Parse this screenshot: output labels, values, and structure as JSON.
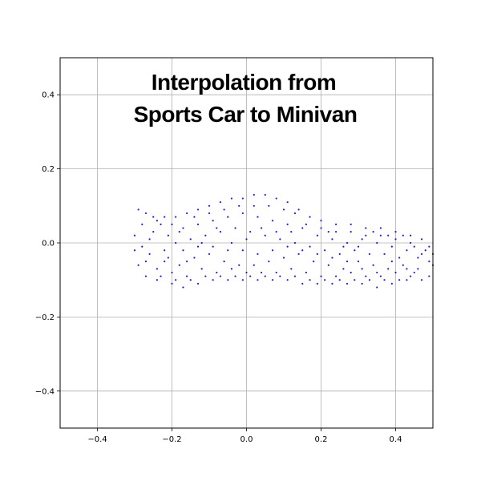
{
  "chart_data": {
    "type": "scatter",
    "title": "Interpolation from\nSports Car to Minivan",
    "title_lines": [
      "Interpolation from",
      "Sports Car to Minivan"
    ],
    "xlabel": "",
    "ylabel": "",
    "xlim": [
      -0.5,
      0.5
    ],
    "ylim": [
      -0.5,
      0.5
    ],
    "xticks": [
      -0.4,
      -0.2,
      0.0,
      0.2,
      0.4
    ],
    "yticks": [
      -0.4,
      -0.2,
      0.0,
      0.2,
      0.4
    ],
    "xtick_labels": [
      "−0.4",
      "−0.2",
      "0.0",
      "0.2",
      "0.4"
    ],
    "ytick_labels": [
      "−0.4",
      "−0.2",
      "0.0",
      "0.2",
      "0.4"
    ],
    "grid": true,
    "point_color": "#1f1fd6",
    "series": [
      {
        "points": [
          [
            -0.29,
            0.09
          ],
          [
            -0.27,
            0.08
          ],
          [
            -0.25,
            0.07
          ],
          [
            -0.22,
            0.07
          ],
          [
            -0.19,
            0.07
          ],
          [
            -0.16,
            0.08
          ],
          [
            -0.13,
            0.09
          ],
          [
            -0.1,
            0.1
          ],
          [
            -0.07,
            0.11
          ],
          [
            -0.04,
            0.12
          ],
          [
            -0.01,
            0.12
          ],
          [
            0.02,
            0.13
          ],
          [
            0.05,
            0.13
          ],
          [
            0.08,
            0.12
          ],
          [
            0.11,
            0.11
          ],
          [
            0.14,
            0.09
          ],
          [
            0.17,
            0.07
          ],
          [
            0.2,
            0.06
          ],
          [
            0.24,
            0.05
          ],
          [
            0.28,
            0.05
          ],
          [
            0.32,
            0.04
          ],
          [
            0.36,
            0.04
          ],
          [
            0.4,
            0.03
          ],
          [
            0.44,
            0.02
          ],
          [
            0.47,
            0.01
          ],
          [
            0.49,
            -0.01
          ],
          [
            0.5,
            -0.03
          ],
          [
            0.5,
            -0.06
          ],
          [
            0.49,
            -0.09
          ],
          [
            -0.3,
            0.02
          ],
          [
            -0.3,
            -0.02
          ],
          [
            -0.29,
            -0.06
          ],
          [
            -0.27,
            -0.09
          ],
          [
            -0.24,
            -0.1
          ],
          [
            -0.2,
            -0.11
          ],
          [
            -0.17,
            -0.12
          ],
          [
            -0.13,
            -0.11
          ],
          [
            -0.09,
            -0.1
          ],
          [
            -0.05,
            -0.1
          ],
          [
            -0.01,
            -0.1
          ],
          [
            0.03,
            -0.1
          ],
          [
            0.07,
            -0.1
          ],
          [
            0.11,
            -0.1
          ],
          [
            0.15,
            -0.11
          ],
          [
            0.19,
            -0.11
          ],
          [
            0.23,
            -0.11
          ],
          [
            0.27,
            -0.11
          ],
          [
            0.31,
            -0.11
          ],
          [
            0.35,
            -0.12
          ],
          [
            0.39,
            -0.11
          ],
          [
            0.43,
            -0.1
          ],
          [
            0.47,
            -0.1
          ],
          [
            -0.25,
            0.03
          ],
          [
            -0.21,
            0.02
          ],
          [
            -0.17,
            0.04
          ],
          [
            -0.13,
            0.05
          ],
          [
            -0.09,
            0.06
          ],
          [
            -0.05,
            0.07
          ],
          [
            -0.01,
            0.08
          ],
          [
            0.03,
            0.07
          ],
          [
            0.07,
            0.06
          ],
          [
            0.11,
            0.05
          ],
          [
            0.15,
            0.04
          ],
          [
            0.19,
            0.02
          ],
          [
            0.23,
            0.01
          ],
          [
            0.27,
            0.0
          ],
          [
            0.31,
            0.01
          ],
          [
            0.35,
            0.0
          ],
          [
            0.39,
            -0.01
          ],
          [
            0.43,
            -0.02
          ],
          [
            0.46,
            -0.04
          ],
          [
            -0.26,
            -0.03
          ],
          [
            -0.22,
            -0.05
          ],
          [
            -0.18,
            -0.06
          ],
          [
            -0.14,
            -0.04
          ],
          [
            -0.1,
            -0.03
          ],
          [
            -0.06,
            -0.05
          ],
          [
            -0.02,
            -0.06
          ],
          [
            0.02,
            -0.06
          ],
          [
            0.06,
            -0.05
          ],
          [
            0.1,
            -0.04
          ],
          [
            0.14,
            -0.03
          ],
          [
            0.18,
            -0.05
          ],
          [
            0.22,
            -0.06
          ],
          [
            0.26,
            -0.07
          ],
          [
            0.3,
            -0.05
          ],
          [
            0.34,
            -0.06
          ],
          [
            0.38,
            -0.07
          ],
          [
            0.42,
            -0.06
          ],
          [
            0.46,
            -0.07
          ],
          [
            -0.24,
            -0.07
          ],
          [
            -0.2,
            -0.08
          ],
          [
            -0.16,
            -0.09
          ],
          [
            -0.12,
            -0.07
          ],
          [
            -0.08,
            -0.08
          ],
          [
            -0.04,
            -0.07
          ],
          [
            0.0,
            -0.08
          ],
          [
            0.04,
            -0.08
          ],
          [
            0.08,
            -0.08
          ],
          [
            0.12,
            -0.07
          ],
          [
            0.16,
            -0.08
          ],
          [
            0.2,
            -0.09
          ],
          [
            0.24,
            -0.09
          ],
          [
            0.28,
            -0.08
          ],
          [
            0.32,
            -0.09
          ],
          [
            0.36,
            -0.09
          ],
          [
            0.4,
            -0.08
          ],
          [
            0.44,
            -0.09
          ],
          [
            -0.23,
            0.05
          ],
          [
            -0.19,
            0.0
          ],
          [
            -0.15,
            0.01
          ],
          [
            -0.11,
            0.02
          ],
          [
            -0.07,
            0.03
          ],
          [
            -0.03,
            0.04
          ],
          [
            0.01,
            0.03
          ],
          [
            0.05,
            0.02
          ],
          [
            0.09,
            0.01
          ],
          [
            0.13,
            0.0
          ],
          [
            0.17,
            -0.01
          ],
          [
            0.21,
            -0.02
          ],
          [
            0.25,
            -0.03
          ],
          [
            0.29,
            -0.02
          ],
          [
            0.33,
            -0.03
          ],
          [
            0.37,
            -0.03
          ],
          [
            0.41,
            -0.04
          ],
          [
            0.45,
            -0.01
          ],
          [
            -0.28,
            0.05
          ],
          [
            -0.28,
            -0.01
          ],
          [
            -0.26,
            0.01
          ],
          [
            -0.22,
            -0.02
          ],
          [
            -0.18,
            0.03
          ],
          [
            -0.14,
            0.07
          ],
          [
            -0.1,
            0.08
          ],
          [
            -0.06,
            0.09
          ],
          [
            -0.02,
            0.1
          ],
          [
            0.02,
            0.1
          ],
          [
            0.06,
            0.1
          ],
          [
            0.1,
            0.09
          ],
          [
            0.13,
            0.08
          ],
          [
            0.16,
            0.05
          ],
          [
            0.2,
            0.04
          ],
          [
            0.24,
            0.03
          ],
          [
            0.28,
            0.03
          ],
          [
            0.32,
            0.02
          ],
          [
            0.36,
            0.02
          ],
          [
            0.4,
            0.01
          ],
          [
            0.44,
            0.0
          ],
          [
            0.48,
            -0.02
          ],
          [
            -0.27,
            -0.05
          ],
          [
            -0.23,
            -0.09
          ],
          [
            -0.19,
            -0.1
          ],
          [
            -0.15,
            -0.1
          ],
          [
            -0.11,
            -0.09
          ],
          [
            -0.07,
            -0.09
          ],
          [
            -0.03,
            -0.09
          ],
          [
            0.01,
            -0.09
          ],
          [
            0.05,
            -0.09
          ],
          [
            0.09,
            -0.09
          ],
          [
            0.13,
            -0.09
          ],
          [
            0.17,
            -0.1
          ],
          [
            0.21,
            -0.1
          ],
          [
            0.25,
            -0.1
          ],
          [
            0.29,
            -0.1
          ],
          [
            0.33,
            -0.1
          ],
          [
            0.37,
            -0.1
          ],
          [
            0.41,
            -0.1
          ],
          [
            0.45,
            -0.08
          ],
          [
            0.49,
            -0.05
          ],
          [
            -0.21,
            -0.04
          ],
          [
            -0.17,
            -0.02
          ],
          [
            -0.13,
            -0.01
          ],
          [
            -0.09,
            -0.01
          ],
          [
            -0.05,
            -0.02
          ],
          [
            -0.01,
            -0.02
          ],
          [
            0.03,
            -0.03
          ],
          [
            0.07,
            -0.02
          ],
          [
            0.11,
            -0.01
          ],
          [
            0.15,
            -0.02
          ],
          [
            0.19,
            -0.03
          ],
          [
            0.23,
            -0.04
          ],
          [
            0.27,
            -0.05
          ],
          [
            0.31,
            -0.07
          ],
          [
            0.35,
            -0.08
          ],
          [
            0.39,
            -0.05
          ],
          [
            0.43,
            -0.07
          ],
          [
            0.47,
            -0.03
          ],
          [
            -0.08,
            0.04
          ],
          [
            -0.04,
            0.0
          ],
          [
            0.0,
            0.01
          ],
          [
            0.04,
            0.04
          ],
          [
            0.08,
            0.03
          ],
          [
            0.12,
            0.03
          ],
          [
            -0.12,
            0.0
          ],
          [
            -0.16,
            -0.05
          ],
          [
            -0.2,
            0.05
          ],
          [
            -0.24,
            0.06
          ],
          [
            0.3,
            -0.01
          ],
          [
            0.34,
            0.03
          ],
          [
            0.38,
            0.02
          ],
          [
            0.42,
            0.02
          ],
          [
            0.26,
            -0.01
          ],
          [
            0.22,
            0.03
          ]
        ]
      }
    ]
  }
}
